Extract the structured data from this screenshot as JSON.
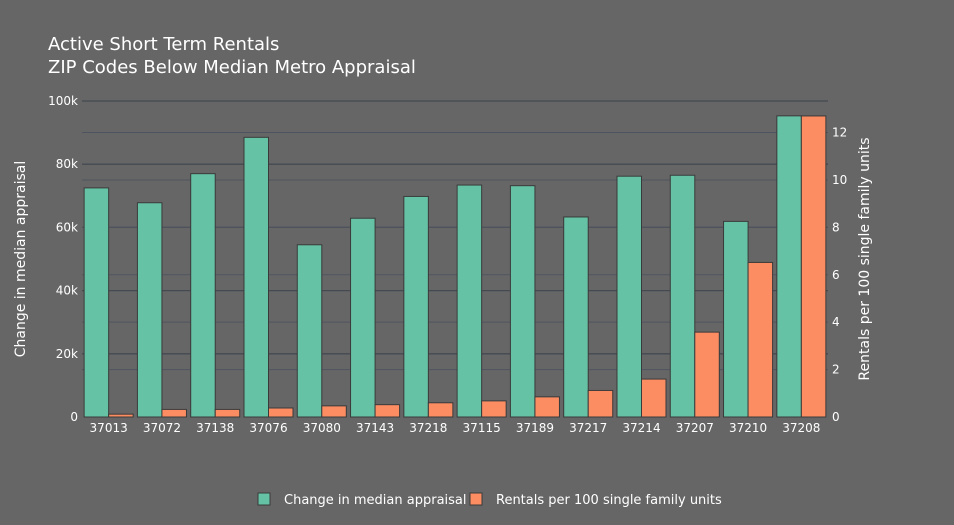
{
  "chart_data": {
    "type": "bar",
    "title": "Active Short Term Rentals",
    "subtitle": "ZIP Codes Below Median Metro Appraisal",
    "categories": [
      "37013",
      "37072",
      "37138",
      "37076",
      "37080",
      "37143",
      "37218",
      "37115",
      "37189",
      "37217",
      "37214",
      "37207",
      "37210",
      "37208"
    ],
    "series": [
      {
        "name": "Change in median appraisal",
        "axis": "left",
        "color": "#66c2a5",
        "values": [
          72500,
          67800,
          77000,
          88500,
          54500,
          62900,
          69800,
          73400,
          73200,
          63300,
          76200,
          76500,
          61900,
          95300
        ]
      },
      {
        "name": "Rentals per 100 single family units",
        "axis": "right",
        "color": "#fc8d62",
        "values": [
          0.12,
          0.32,
          0.32,
          0.38,
          0.47,
          0.52,
          0.6,
          0.68,
          0.85,
          1.12,
          1.6,
          3.58,
          6.52,
          12.7
        ]
      }
    ],
    "ylabel": "Change in median appraisal",
    "y2label": "Rentals per 100 single family units",
    "ylim": [
      0,
      100000
    ],
    "y2lim": [
      0,
      13.33
    ],
    "yticks": [
      0,
      20000,
      40000,
      60000,
      80000,
      100000
    ],
    "ytick_labels": [
      "0",
      "20k",
      "40k",
      "60k",
      "80k",
      "100k"
    ],
    "y2ticks": [
      0,
      2,
      4,
      6,
      8,
      10,
      12
    ],
    "y2tick_labels": [
      "0",
      "2",
      "4",
      "6",
      "8",
      "10",
      "12"
    ],
    "grid": true,
    "legend_position": "bottom"
  }
}
